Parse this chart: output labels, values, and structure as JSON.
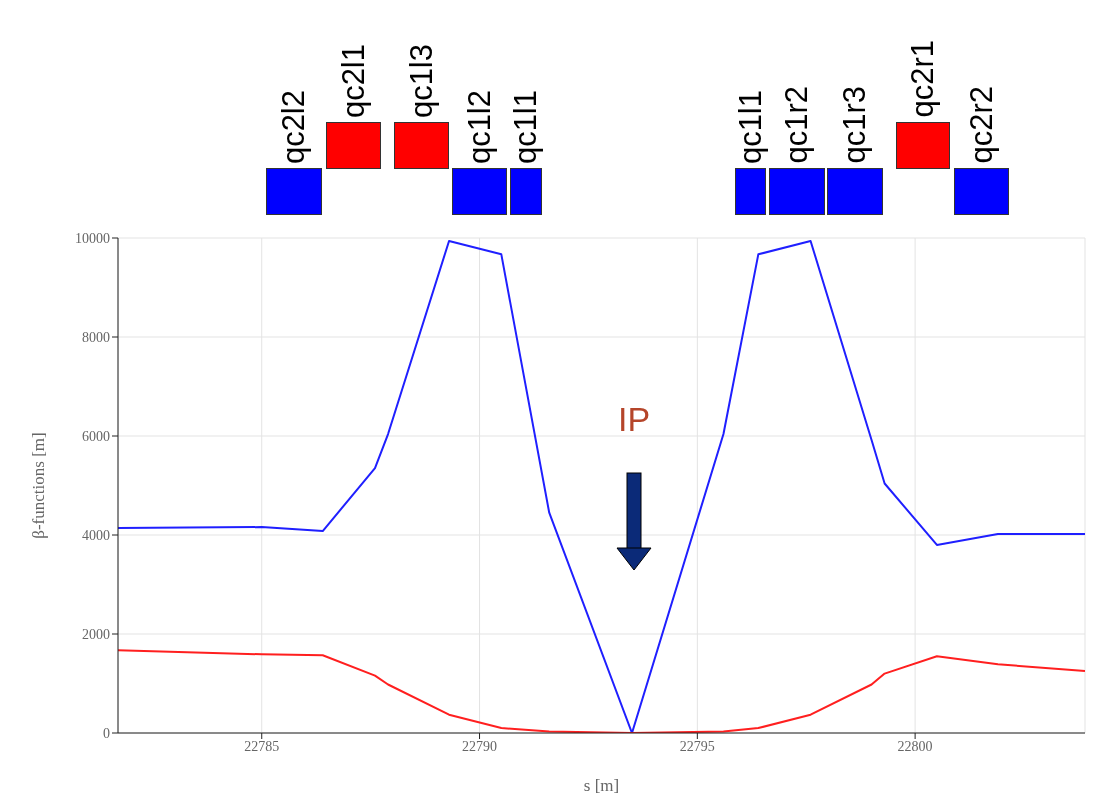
{
  "chart_data": {
    "type": "line",
    "xlabel": "s [m]",
    "ylabel": "β-functions [m]",
    "xlim": [
      22781.7,
      22803.9
    ],
    "xticks": [
      22785,
      22790,
      22795,
      22800
    ],
    "ylim": [
      0,
      10000
    ],
    "yticks": [
      0,
      2000,
      4000,
      6000,
      8000,
      10000
    ],
    "grid": true,
    "marker": "none",
    "line_style": "solid",
    "x": [
      22781.7,
      22785,
      22786.4,
      22787.6,
      22787.9,
      22789.3,
      22790.5,
      22791.6,
      22793.5,
      22795.6,
      22796.4,
      22797.6,
      22799,
      22799.3,
      22800.5,
      22801.9,
      22803.9
    ],
    "series": [
      {
        "color": "#1f1fff",
        "values": [
          4140,
          4160,
          4080,
          5350,
          6040,
          9940,
          9670,
          4450,
          0,
          6040,
          9670,
          9940,
          5920,
          5040,
          3800,
          4020,
          4020
        ]
      },
      {
        "color": "#ff1f1f",
        "values": [
          1670,
          1590,
          1570,
          1160,
          980,
          370,
          100,
          30,
          0,
          30,
          100,
          370,
          980,
          1200,
          1550,
          1390,
          1250
        ]
      }
    ],
    "annotations": [
      "qc2l2",
      "qc2l1",
      "qc1l3",
      "qc1l2",
      "qc1l1",
      "qc1l1",
      "qc1r2",
      "qc1r3",
      "qc2r1",
      "qc2r2",
      "IP"
    ]
  }
}
